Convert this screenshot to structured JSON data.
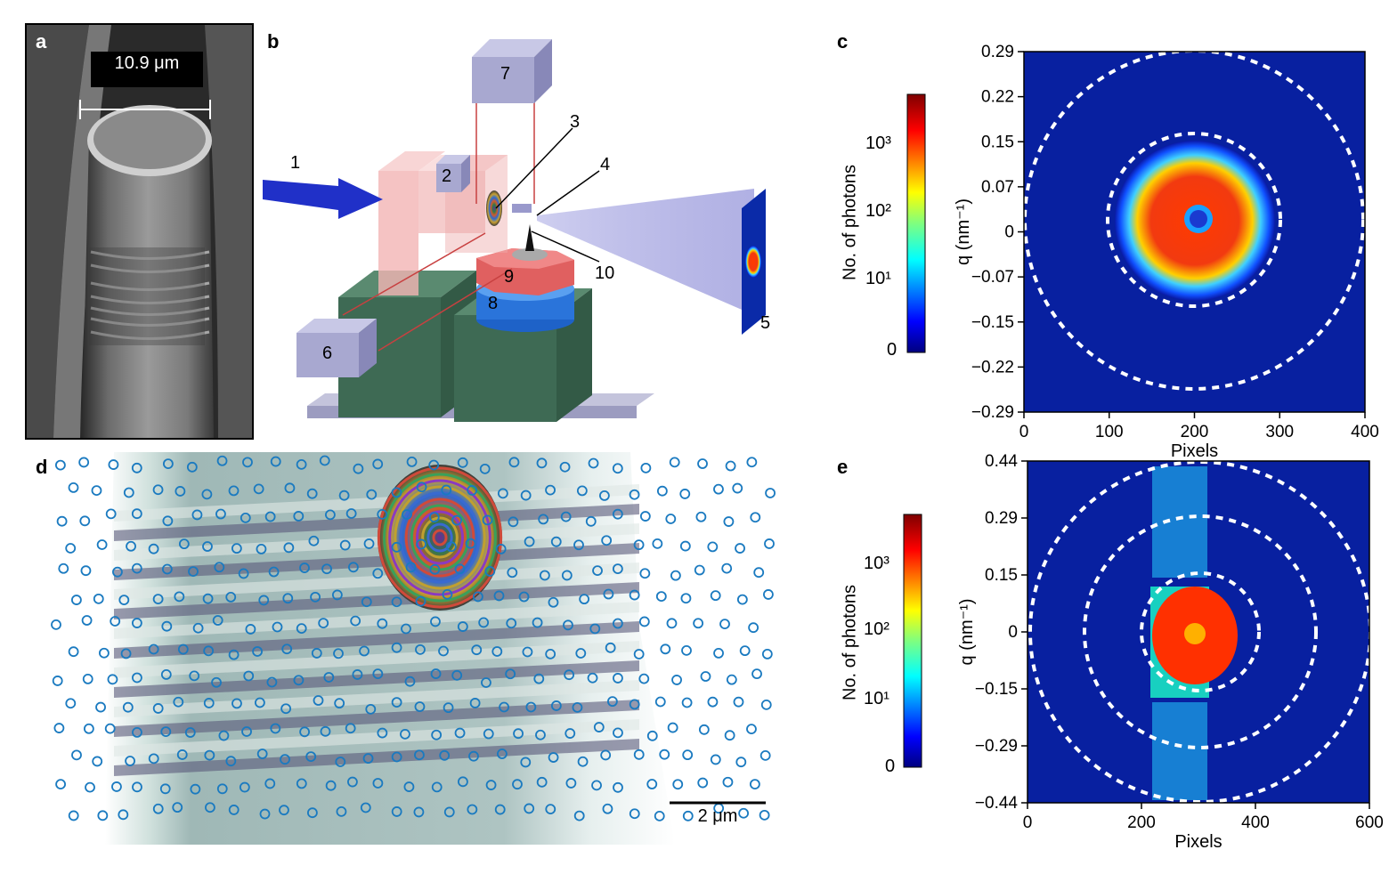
{
  "panel_a": {
    "label": "a",
    "scale_text": "10.9 μm"
  },
  "panel_b": {
    "label": "b",
    "components": [
      "1",
      "2",
      "3",
      "4",
      "5",
      "6",
      "7",
      "8",
      "9",
      "10"
    ]
  },
  "panel_c": {
    "label": "c",
    "colorbar": {
      "label": "No. of photons",
      "ticks": [
        "10³",
        "10²",
        "10¹",
        "0"
      ]
    }
  },
  "panel_d": {
    "label": "d",
    "scale_text": "2 μm"
  },
  "panel_e": {
    "label": "e",
    "colorbar": {
      "label": "No. of photons",
      "ticks": [
        "10³",
        "10²",
        "10¹",
        "0"
      ]
    }
  },
  "chart_data": [
    {
      "type": "heatmap",
      "panel": "c",
      "xlabel": "Pixels",
      "ylabel": "q (nm⁻¹)",
      "xlim": [
        0,
        400
      ],
      "ylim": [
        -0.29,
        0.29
      ],
      "x_ticks": [
        "0",
        "100",
        "200",
        "300",
        "400"
      ],
      "y_ticks": [
        "0.29",
        "0.22",
        "0.15",
        "0.07",
        "0",
        "−0.07",
        "−0.15",
        "−0.22",
        "−0.29"
      ],
      "colorbar_scale": "log",
      "colormap": "jet"
    },
    {
      "type": "heatmap",
      "panel": "e",
      "xlabel": "Pixels",
      "ylabel": "q (nm⁻¹)",
      "xlim": [
        0,
        600
      ],
      "ylim": [
        -0.44,
        0.44
      ],
      "x_ticks": [
        "0",
        "200",
        "400",
        "600"
      ],
      "y_ticks": [
        "0.44",
        "0.29",
        "0.15",
        "0",
        "−0.15",
        "−0.29",
        "−0.44"
      ],
      "colorbar_scale": "log",
      "colormap": "jet"
    }
  ]
}
